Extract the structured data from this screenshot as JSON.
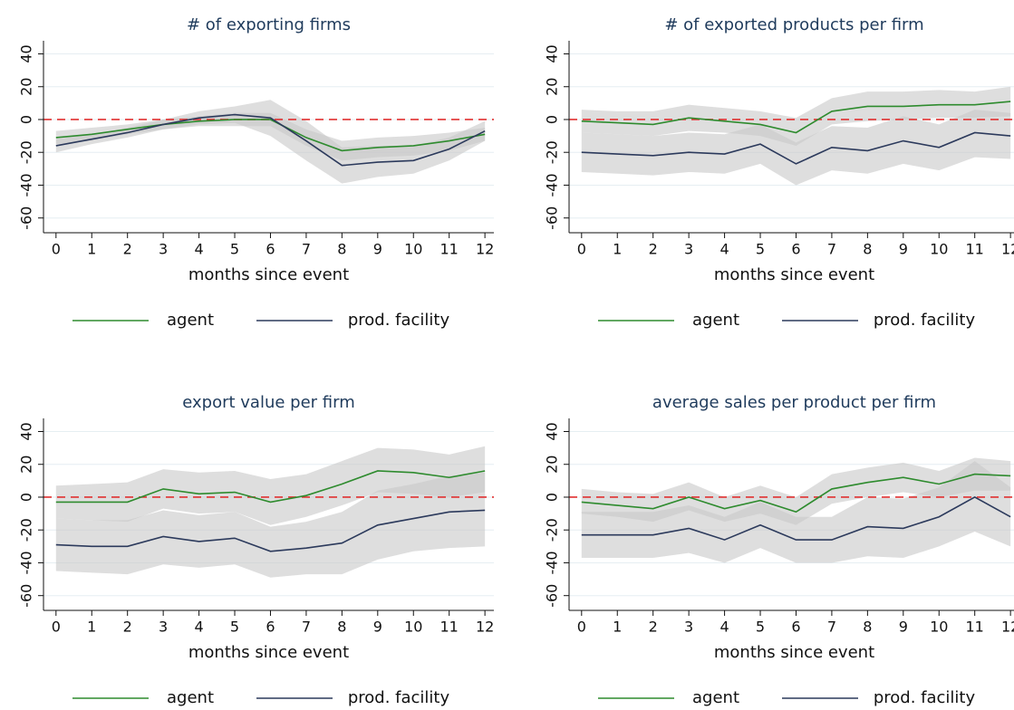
{
  "chart_data": [
    {
      "type": "line",
      "title": "# of exporting firms",
      "xlabel": "months since event",
      "x": [
        0,
        1,
        2,
        3,
        4,
        5,
        6,
        7,
        8,
        9,
        10,
        11,
        12
      ],
      "xticks": [
        0,
        1,
        2,
        3,
        4,
        5,
        6,
        7,
        8,
        9,
        10,
        11,
        12
      ],
      "xlim": [
        -0.35,
        12.25
      ],
      "ylim": [
        -69,
        48
      ],
      "yticks": [
        40,
        20,
        0,
        -20,
        -40,
        -60
      ],
      "grid": true,
      "refline": 0,
      "refline_color": "#e03030",
      "band_color": "#c8c8c8",
      "series": [
        {
          "name": "agent",
          "color": "#2e8b2e",
          "values": [
            -11,
            -9,
            -6,
            -3,
            -1,
            0,
            0,
            -11,
            -19,
            -17,
            -16,
            -13,
            -9
          ],
          "lower": [
            -15,
            -13,
            -9,
            -6,
            -4,
            -4,
            -4,
            -16,
            -25,
            -23,
            -22,
            -19,
            -13
          ],
          "upper": [
            -7,
            -5,
            -3,
            0,
            2,
            4,
            4,
            -6,
            -13,
            -11,
            -10,
            -8,
            -5
          ]
        },
        {
          "name": "prod. facility",
          "color": "#2c3a5c",
          "values": [
            -16,
            -12,
            -8,
            -3,
            1,
            3,
            1,
            -13,
            -28,
            -26,
            -25,
            -18,
            -7
          ],
          "lower": [
            -20,
            -15,
            -11,
            -6,
            -3,
            -2,
            -10,
            -25,
            -39,
            -35,
            -33,
            -25,
            -13
          ],
          "upper": [
            -12,
            -9,
            -5,
            0,
            5,
            8,
            12,
            -1,
            -17,
            -16,
            -16,
            -11,
            -1
          ]
        }
      ]
    },
    {
      "type": "line",
      "title": "# of exported products per firm",
      "xlabel": "months since event",
      "x": [
        0,
        1,
        2,
        3,
        4,
        5,
        6,
        7,
        8,
        9,
        10,
        11,
        12
      ],
      "xticks": [
        0,
        1,
        2,
        3,
        4,
        5,
        6,
        7,
        8,
        9,
        10,
        11,
        12
      ],
      "xlim": [
        -0.35,
        12.25
      ],
      "ylim": [
        -69,
        48
      ],
      "yticks": [
        40,
        20,
        0,
        -20,
        -40,
        -60
      ],
      "grid": true,
      "refline": 0,
      "refline_color": "#e03030",
      "band_color": "#c8c8c8",
      "series": [
        {
          "name": "agent",
          "color": "#2e8b2e",
          "values": [
            -1,
            -2,
            -3,
            1,
            -1,
            -3,
            -8,
            5,
            8,
            8,
            9,
            9,
            11
          ],
          "lower": [
            -8,
            -9,
            -10,
            -7,
            -8,
            -10,
            -16,
            -3,
            -1,
            0,
            1,
            1,
            2
          ],
          "upper": [
            6,
            5,
            5,
            9,
            7,
            5,
            1,
            13,
            17,
            17,
            18,
            17,
            20
          ]
        },
        {
          "name": "prod. facility",
          "color": "#2c3a5c",
          "values": [
            -20,
            -21,
            -22,
            -20,
            -21,
            -15,
            -27,
            -17,
            -19,
            -13,
            -17,
            -8,
            -10
          ],
          "lower": [
            -32,
            -33,
            -34,
            -32,
            -33,
            -27,
            -40,
            -31,
            -33,
            -27,
            -31,
            -23,
            -24
          ],
          "upper": [
            -8,
            -9,
            -10,
            -8,
            -9,
            -3,
            -14,
            -4,
            -5,
            2,
            -3,
            6,
            4
          ]
        }
      ]
    },
    {
      "type": "line",
      "title": "export value per firm",
      "xlabel": "months since event",
      "x": [
        0,
        1,
        2,
        3,
        4,
        5,
        6,
        7,
        8,
        9,
        10,
        11,
        12
      ],
      "xticks": [
        0,
        1,
        2,
        3,
        4,
        5,
        6,
        7,
        8,
        9,
        10,
        11,
        12
      ],
      "xlim": [
        -0.35,
        12.25
      ],
      "ylim": [
        -69,
        48
      ],
      "yticks": [
        40,
        20,
        0,
        -20,
        -40,
        -60
      ],
      "grid": true,
      "refline": 0,
      "refline_color": "#e03030",
      "band_color": "#c8c8c8",
      "series": [
        {
          "name": "agent",
          "color": "#2e8b2e",
          "values": [
            -3,
            -3,
            -3,
            5,
            2,
            3,
            -3,
            1,
            8,
            16,
            15,
            12,
            16
          ],
          "lower": [
            -13,
            -14,
            -15,
            -7,
            -10,
            -9,
            -17,
            -12,
            -5,
            3,
            2,
            0,
            3
          ],
          "upper": [
            7,
            8,
            9,
            17,
            15,
            16,
            11,
            14,
            22,
            30,
            29,
            26,
            31
          ]
        },
        {
          "name": "prod. facility",
          "color": "#2c3a5c",
          "values": [
            -29,
            -30,
            -30,
            -24,
            -27,
            -25,
            -33,
            -31,
            -28,
            -17,
            -13,
            -9,
            -8
          ],
          "lower": [
            -45,
            -46,
            -47,
            -41,
            -43,
            -41,
            -49,
            -47,
            -47,
            -38,
            -33,
            -31,
            -30
          ],
          "upper": [
            -13,
            -14,
            -14,
            -8,
            -11,
            -9,
            -18,
            -15,
            -9,
            4,
            8,
            13,
            15
          ]
        }
      ]
    },
    {
      "type": "line",
      "title": "average sales per product per firm",
      "xlabel": "months since event",
      "x": [
        0,
        1,
        2,
        3,
        4,
        5,
        6,
        7,
        8,
        9,
        10,
        11,
        12
      ],
      "xticks": [
        0,
        1,
        2,
        3,
        4,
        5,
        6,
        7,
        8,
        9,
        10,
        11,
        12
      ],
      "xlim": [
        -0.35,
        12.25
      ],
      "ylim": [
        -69,
        48
      ],
      "yticks": [
        40,
        20,
        0,
        -20,
        -40,
        -60
      ],
      "grid": true,
      "refline": 0,
      "refline_color": "#e03030",
      "band_color": "#c8c8c8",
      "series": [
        {
          "name": "agent",
          "color": "#2e8b2e",
          "values": [
            -3,
            -5,
            -7,
            0,
            -7,
            -2,
            -9,
            5,
            9,
            12,
            8,
            14,
            13
          ],
          "lower": [
            -10,
            -12,
            -15,
            -8,
            -15,
            -10,
            -17,
            -4,
            0,
            3,
            0,
            4,
            4
          ],
          "upper": [
            5,
            3,
            2,
            9,
            0,
            7,
            0,
            14,
            18,
            21,
            16,
            24,
            22
          ]
        },
        {
          "name": "prod. facility",
          "color": "#2c3a5c",
          "values": [
            -23,
            -23,
            -23,
            -19,
            -26,
            -17,
            -26,
            -26,
            -18,
            -19,
            -12,
            0,
            -12
          ],
          "lower": [
            -37,
            -37,
            -37,
            -34,
            -40,
            -31,
            -40,
            -40,
            -36,
            -37,
            -30,
            -21,
            -30
          ],
          "upper": [
            -9,
            -9,
            -9,
            -5,
            -12,
            -3,
            -12,
            -12,
            0,
            -1,
            6,
            22,
            6
          ]
        }
      ]
    }
  ]
}
